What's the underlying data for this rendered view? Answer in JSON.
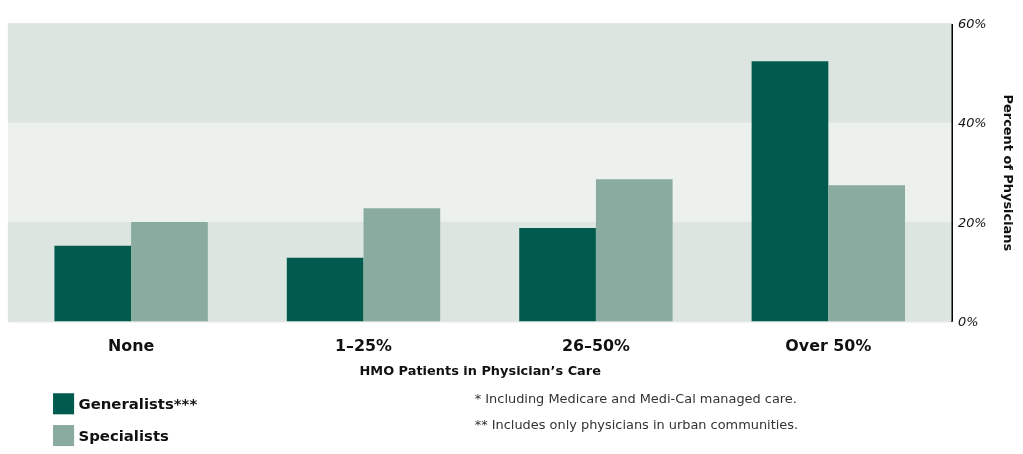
{
  "chart_data": {
    "type": "bar",
    "xlabel": "HMO Patients in Physician’s Care",
    "ylabel": "Percent of Physicians",
    "categories": [
      "None",
      "1–25%",
      "26–50%",
      "Over 50%"
    ],
    "series": [
      {
        "name": "Generalists***",
        "color": "#005a4e",
        "values": [
          15.2,
          12.8,
          18.8,
          52.4
        ]
      },
      {
        "name": "Specialists",
        "color": "#8aab9f",
        "values": [
          20,
          22.8,
          28.6,
          27.4
        ]
      }
    ],
    "ylim": [
      0,
      60
    ],
    "yticks": [
      {
        "value": 0,
        "label": "0%"
      },
      {
        "value": 20,
        "label": "20%"
      },
      {
        "value": 40,
        "label": "40%"
      },
      {
        "value": 60,
        "label": "60%"
      }
    ],
    "bands": [
      {
        "axis": "y",
        "from": 0,
        "to": 20,
        "label": null,
        "color": "#dce5df"
      },
      {
        "axis": "y",
        "from": 20,
        "to": 40,
        "label": null,
        "color": "#ecf1ee"
      },
      {
        "axis": "y",
        "from": 40,
        "to": 60,
        "label": null,
        "color": "#dce5df"
      }
    ],
    "legend": "bottom left",
    "annotations": [
      "* Including Medicare and Medi-Cal managed care.",
      "** Includes only physicians in urban communities."
    ]
  }
}
